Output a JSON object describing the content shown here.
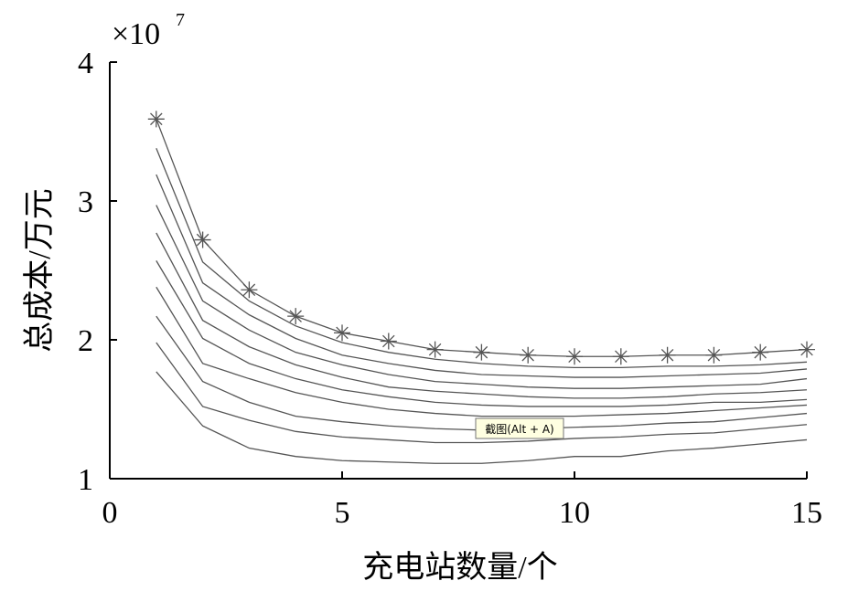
{
  "chart_data": {
    "type": "line",
    "y_multiplier": {
      "base": "×10",
      "exponent": "7"
    },
    "x_label": "充电站数量/个",
    "y_label": "总成本/万元",
    "annotation": "截图(Alt + A)",
    "x": [
      1,
      2,
      3,
      4,
      5,
      6,
      7,
      8,
      9,
      10,
      11,
      12,
      13,
      14,
      15
    ],
    "xlim": [
      0,
      15
    ],
    "xticks": [
      0,
      5,
      10,
      15
    ],
    "ylim": [
      1,
      4
    ],
    "yticks": [
      1,
      2,
      3,
      4
    ],
    "series": [
      {
        "color": "#555555",
        "marker": "asterisk",
        "values": [
          3.59,
          2.72,
          2.36,
          2.17,
          2.05,
          1.99,
          1.93,
          1.91,
          1.89,
          1.88,
          1.88,
          1.89,
          1.89,
          1.91,
          1.93
        ]
      },
      {
        "color": "#555555",
        "values": [
          3.38,
          2.56,
          2.28,
          2.1,
          1.98,
          1.91,
          1.86,
          1.83,
          1.81,
          1.8,
          1.8,
          1.81,
          1.81,
          1.82,
          1.84
        ]
      },
      {
        "color": "#555555",
        "values": [
          3.19,
          2.41,
          2.18,
          2.01,
          1.89,
          1.83,
          1.78,
          1.75,
          1.74,
          1.73,
          1.73,
          1.74,
          1.75,
          1.76,
          1.79
        ]
      },
      {
        "color": "#555555",
        "values": [
          2.97,
          2.28,
          2.07,
          1.91,
          1.82,
          1.75,
          1.7,
          1.68,
          1.66,
          1.65,
          1.65,
          1.66,
          1.67,
          1.68,
          1.72
        ]
      },
      {
        "color": "#555555",
        "values": [
          2.77,
          2.14,
          1.95,
          1.82,
          1.73,
          1.66,
          1.63,
          1.61,
          1.59,
          1.58,
          1.58,
          1.59,
          1.61,
          1.62,
          1.64
        ]
      },
      {
        "color": "#555555",
        "values": [
          2.57,
          2.01,
          1.83,
          1.72,
          1.64,
          1.59,
          1.55,
          1.53,
          1.52,
          1.52,
          1.52,
          1.53,
          1.55,
          1.55,
          1.57
        ]
      },
      {
        "color": "#555555",
        "values": [
          2.38,
          1.83,
          1.72,
          1.62,
          1.55,
          1.5,
          1.47,
          1.45,
          1.45,
          1.45,
          1.46,
          1.47,
          1.49,
          1.51,
          1.53
        ]
      },
      {
        "color": "#555555",
        "values": [
          2.17,
          1.7,
          1.55,
          1.45,
          1.41,
          1.38,
          1.36,
          1.35,
          1.36,
          1.37,
          1.38,
          1.4,
          1.41,
          1.44,
          1.47
        ]
      },
      {
        "color": "#555555",
        "values": [
          1.98,
          1.52,
          1.42,
          1.34,
          1.3,
          1.28,
          1.26,
          1.26,
          1.27,
          1.29,
          1.3,
          1.32,
          1.33,
          1.36,
          1.39
        ]
      },
      {
        "color": "#555555",
        "values": [
          1.77,
          1.38,
          1.22,
          1.16,
          1.13,
          1.12,
          1.11,
          1.11,
          1.13,
          1.16,
          1.16,
          1.2,
          1.22,
          1.25,
          1.28
        ]
      }
    ]
  }
}
